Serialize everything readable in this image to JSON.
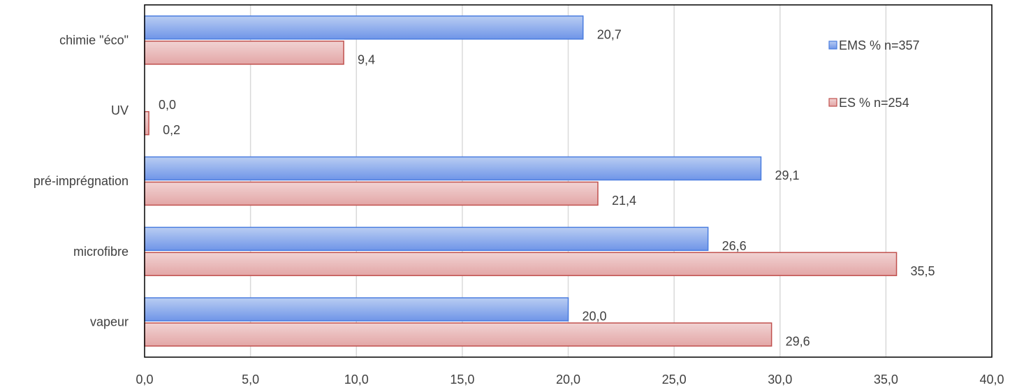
{
  "chart_data": {
    "type": "bar",
    "orientation": "horizontal",
    "categories": [
      "chimie \"éco\"",
      "UV",
      "pré-imprégnation",
      "microfibre",
      "vapeur"
    ],
    "series": [
      {
        "name": "EMS % n=357",
        "values": [
          20.7,
          0.0,
          29.1,
          26.6,
          20.0
        ],
        "labels": [
          "20,7",
          "0,0",
          "29,1",
          "26,6",
          "20,0"
        ],
        "color_top": "#b9cdf2",
        "color_bottom": "#6f95e8",
        "stroke": "#4a7de0"
      },
      {
        "name": "ES % n=254",
        "values": [
          9.4,
          0.2,
          21.4,
          35.5,
          29.6
        ],
        "labels": [
          "9,4",
          "0,2",
          "21,4",
          "35,5",
          "29,6"
        ],
        "color_top": "#f1d3d3",
        "color_bottom": "#e3a6a6",
        "stroke": "#c0504d"
      }
    ],
    "xlim": [
      0,
      40
    ],
    "xticks": [
      0,
      5,
      10,
      15,
      20,
      25,
      30,
      35,
      40
    ],
    "xtick_labels": [
      "0,0",
      "5,0",
      "10,0",
      "15,0",
      "20,0",
      "25,0",
      "30,0",
      "35,0",
      "40,0"
    ],
    "grid": true,
    "legend_position": "top-right",
    "title": "",
    "xlabel": "",
    "ylabel": ""
  }
}
